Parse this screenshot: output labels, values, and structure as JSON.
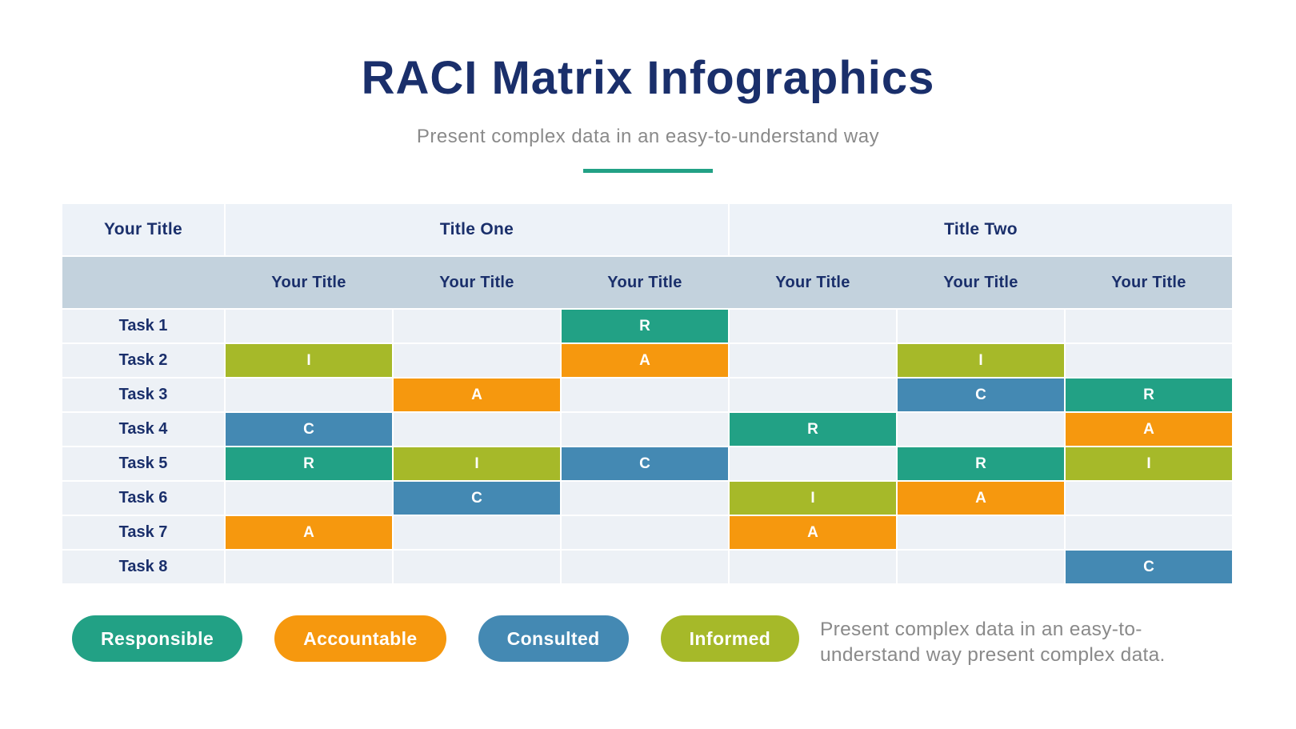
{
  "header": {
    "title": "RACI Matrix Infographics",
    "subtitle": "Present complex data in an easy-to-understand way"
  },
  "colors": {
    "navy": "#1A2F6B",
    "teal": "#22A185",
    "orange": "#F6980E",
    "blue": "#4489B3",
    "olive": "#A6B929",
    "group_header_bg": "#EDF2F8",
    "subheader_bg": "#C3D2DD",
    "row_bg": "#EDF1F6",
    "muted_text": "#8A8A8A"
  },
  "table": {
    "corner_label": "Your Title",
    "group_headers": [
      {
        "label": "Title One",
        "span": 3
      },
      {
        "label": "Title Two",
        "span": 3
      }
    ],
    "column_headers": [
      "Your Title",
      "Your Title",
      "Your Title",
      "Your Title",
      "Your Title",
      "Your Title"
    ],
    "letter_colors": {
      "R": "#22A185",
      "A": "#F6980E",
      "C": "#4489B3",
      "I": "#A6B929"
    },
    "rows": [
      {
        "task": "Task 1",
        "cells": [
          null,
          null,
          "R",
          null,
          null,
          null
        ]
      },
      {
        "task": "Task 2",
        "cells": [
          "I",
          null,
          "A",
          null,
          "I",
          null
        ]
      },
      {
        "task": "Task 3",
        "cells": [
          null,
          "A",
          null,
          null,
          "C",
          "R"
        ]
      },
      {
        "task": "Task 4",
        "cells": [
          "C",
          null,
          null,
          "R",
          null,
          "A"
        ]
      },
      {
        "task": "Task 5",
        "cells": [
          "R",
          "I",
          "C",
          null,
          "R",
          "I"
        ]
      },
      {
        "task": "Task 6",
        "cells": [
          null,
          "C",
          null,
          "I",
          "A",
          null
        ]
      },
      {
        "task": "Task 7",
        "cells": [
          "A",
          null,
          null,
          "A",
          null,
          null
        ]
      },
      {
        "task": "Task 8",
        "cells": [
          null,
          null,
          null,
          null,
          null,
          "C"
        ]
      }
    ]
  },
  "legend": [
    {
      "label": "Responsible",
      "key": "R",
      "color": "#22A185"
    },
    {
      "label": "Accountable",
      "key": "A",
      "color": "#F6980E"
    },
    {
      "label": "Consulted",
      "key": "C",
      "color": "#4489B3"
    },
    {
      "label": "Informed",
      "key": "I",
      "color": "#A6B929"
    }
  ],
  "footer_note": "Present complex data in an easy-to-understand way present complex data.",
  "chart_data": {
    "type": "table",
    "title": "RACI Matrix Infographics",
    "subtitle": "Present complex data in an easy-to-understand way",
    "row_header": "Your Title",
    "column_groups": [
      {
        "label": "Title One",
        "columns": [
          "Your Title",
          "Your Title",
          "Your Title"
        ]
      },
      {
        "label": "Title Two",
        "columns": [
          "Your Title",
          "Your Title",
          "Your Title"
        ]
      }
    ],
    "rows": [
      "Task 1",
      "Task 2",
      "Task 3",
      "Task 4",
      "Task 5",
      "Task 6",
      "Task 7",
      "Task 8"
    ],
    "values": [
      [
        null,
        null,
        "R",
        null,
        null,
        null
      ],
      [
        "I",
        null,
        "A",
        null,
        "I",
        null
      ],
      [
        null,
        "A",
        null,
        null,
        "C",
        "R"
      ],
      [
        "C",
        null,
        null,
        "R",
        null,
        "A"
      ],
      [
        "R",
        "I",
        "C",
        null,
        "R",
        "I"
      ],
      [
        null,
        "C",
        null,
        "I",
        "A",
        null
      ],
      [
        "A",
        null,
        null,
        "A",
        null,
        null
      ],
      [
        null,
        null,
        null,
        null,
        null,
        "C"
      ]
    ],
    "legend": [
      {
        "key": "R",
        "label": "Responsible",
        "color": "#22A185"
      },
      {
        "key": "A",
        "label": "Accountable",
        "color": "#F6980E"
      },
      {
        "key": "C",
        "label": "Consulted",
        "color": "#4489B3"
      },
      {
        "key": "I",
        "label": "Informed",
        "color": "#A6B929"
      }
    ]
  }
}
